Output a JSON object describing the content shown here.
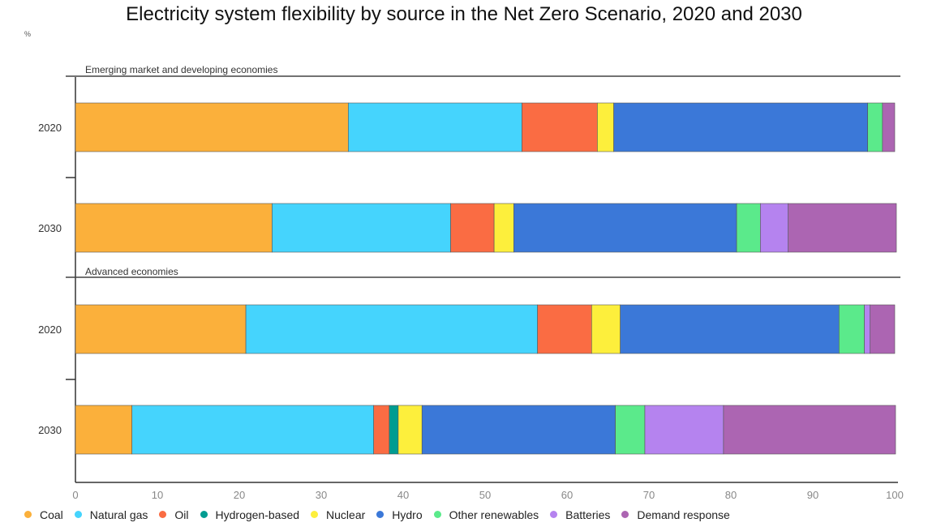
{
  "title": "Electricity system flexibility by source in the Net Zero Scenario, 2020 and 2030",
  "chart_data": {
    "type": "bar",
    "orientation": "horizontal",
    "stacked": true,
    "title": "Electricity system flexibility by source in the Net Zero Scenario, 2020 and 2030",
    "ylabel": "%",
    "xlabel": "",
    "xlim": [
      0,
      100
    ],
    "x_ticks": [
      "0",
      "10",
      "20",
      "30",
      "40",
      "50",
      "60",
      "70",
      "80",
      "90",
      "100"
    ],
    "legend_position": "bottom",
    "groups": [
      {
        "label": "Emerging market and developing economies",
        "bars": [
          {
            "category": "2020",
            "values": [
              33.3,
              21.2,
              9.2,
              0,
              2.0,
              31.0,
              1.8,
              0,
              1.5
            ]
          },
          {
            "category": "2030",
            "values": [
              24.0,
              21.8,
              5.3,
              0,
              2.4,
              27.2,
              2.9,
              3.4,
              13.2
            ]
          }
        ]
      },
      {
        "label": "Advanced economies",
        "bars": [
          {
            "category": "2020",
            "values": [
              20.8,
              35.6,
              6.6,
              0,
              3.5,
              26.7,
              3.1,
              0.7,
              3.0
            ]
          },
          {
            "category": "2030",
            "values": [
              6.9,
              29.5,
              1.9,
              1.1,
              2.9,
              23.6,
              3.6,
              9.6,
              21.0
            ]
          }
        ]
      }
    ],
    "series": [
      {
        "name": "Coal",
        "color": "#fbb03b"
      },
      {
        "name": "Natural gas",
        "color": "#45d4fd"
      },
      {
        "name": "Oil",
        "color": "#fa6c43"
      },
      {
        "name": "Hydrogen-based",
        "color": "#009c91"
      },
      {
        "name": "Nuclear",
        "color": "#fdef3c"
      },
      {
        "name": "Hydro",
        "color": "#3b78d8"
      },
      {
        "name": "Other renewables",
        "color": "#5bea8b"
      },
      {
        "name": "Batteries",
        "color": "#b583ef"
      },
      {
        "name": "Demand response",
        "color": "#ac65b2"
      }
    ]
  }
}
